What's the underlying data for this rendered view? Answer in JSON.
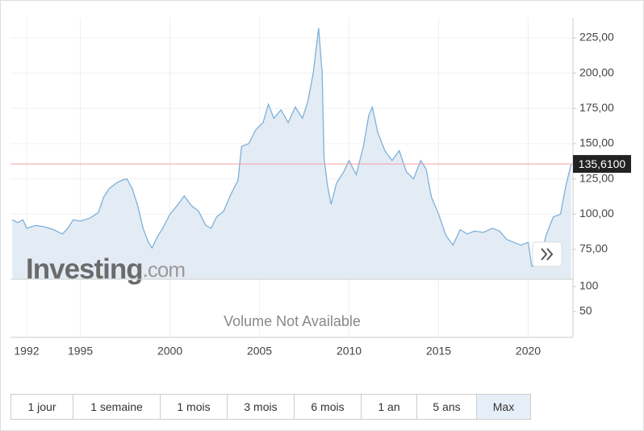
{
  "chart_data": {
    "type": "area",
    "x": [
      1991.2,
      1991.5,
      1991.8,
      1992.0,
      1992.5,
      1993.0,
      1993.5,
      1994.0,
      1994.3,
      1994.6,
      1995.0,
      1995.5,
      1996.0,
      1996.3,
      1996.6,
      1997.0,
      1997.3,
      1997.6,
      1997.9,
      1998.2,
      1998.5,
      1998.8,
      1999.0,
      1999.3,
      1999.6,
      2000.0,
      2000.4,
      2000.8,
      2001.2,
      2001.6,
      2002.0,
      2002.3,
      2002.6,
      2003.0,
      2003.4,
      2003.8,
      2004.0,
      2004.4,
      2004.8,
      2005.2,
      2005.5,
      2005.8,
      2006.2,
      2006.6,
      2007.0,
      2007.4,
      2007.7,
      2008.0,
      2008.3,
      2008.5,
      2008.6,
      2008.8,
      2009.0,
      2009.3,
      2009.7,
      2010.0,
      2010.4,
      2010.8,
      2011.1,
      2011.3,
      2011.6,
      2012.0,
      2012.4,
      2012.8,
      2013.2,
      2013.6,
      2014.0,
      2014.3,
      2014.6,
      2015.0,
      2015.4,
      2015.8,
      2016.2,
      2016.6,
      2017.0,
      2017.5,
      2018.0,
      2018.4,
      2018.8,
      2019.2,
      2019.6,
      2020.0,
      2020.2,
      2020.6,
      2021.0,
      2021.4,
      2021.8,
      2022.1,
      2022.4
    ],
    "values": [
      96,
      94,
      96,
      90,
      92,
      91,
      89,
      86,
      90,
      96,
      95,
      97,
      101,
      112,
      118,
      122,
      124,
      125,
      118,
      106,
      90,
      80,
      76,
      84,
      90,
      100,
      106,
      113,
      106,
      102,
      92,
      90,
      98,
      102,
      114,
      124,
      148,
      150,
      160,
      165,
      178,
      168,
      174,
      165,
      176,
      168,
      180,
      200,
      232,
      200,
      140,
      120,
      107,
      122,
      130,
      138,
      128,
      148,
      170,
      176,
      158,
      145,
      138,
      145,
      130,
      125,
      138,
      132,
      112,
      100,
      85,
      78,
      89,
      86,
      88,
      87,
      90,
      88,
      82,
      80,
      78,
      80,
      63,
      64,
      85,
      98,
      100,
      120,
      135.61
    ],
    "color": "#7fb0d8",
    "fill_color": "#e3ecf5",
    "xlim": [
      1991.1,
      2022.5
    ],
    "xticks": [
      1992,
      1995,
      2000,
      2005,
      2010,
      2015,
      2020
    ],
    "ylim": [
      53.8,
      239.3
    ],
    "yticks": [
      {
        "value": 75,
        "label": "75,00"
      },
      {
        "value": 100,
        "label": "100,00"
      },
      {
        "value": 125,
        "label": "125,00"
      },
      {
        "value": 150,
        "label": "150,00"
      },
      {
        "value": 175,
        "label": "175,00"
      },
      {
        "value": 200,
        "label": "200,00"
      },
      {
        "value": 225,
        "label": "225,00"
      }
    ],
    "grid": true,
    "last_price": {
      "value": 135.61,
      "label": "135,6100"
    },
    "last_price_color": "#f4a0a0",
    "volume_annotation": "Volume Not Available",
    "volume_ylim": [
      -1.6,
      114.5
    ],
    "volume_yticks": [
      100,
      50
    ]
  },
  "logo": {
    "name": "Investing",
    "suffix": ".com"
  },
  "range_buttons": {
    "labels": [
      "1 jour",
      "1 semaine",
      "1 mois",
      "3 mois",
      "6 mois",
      "1 an",
      "5 ans",
      "Max"
    ],
    "active": 7
  }
}
